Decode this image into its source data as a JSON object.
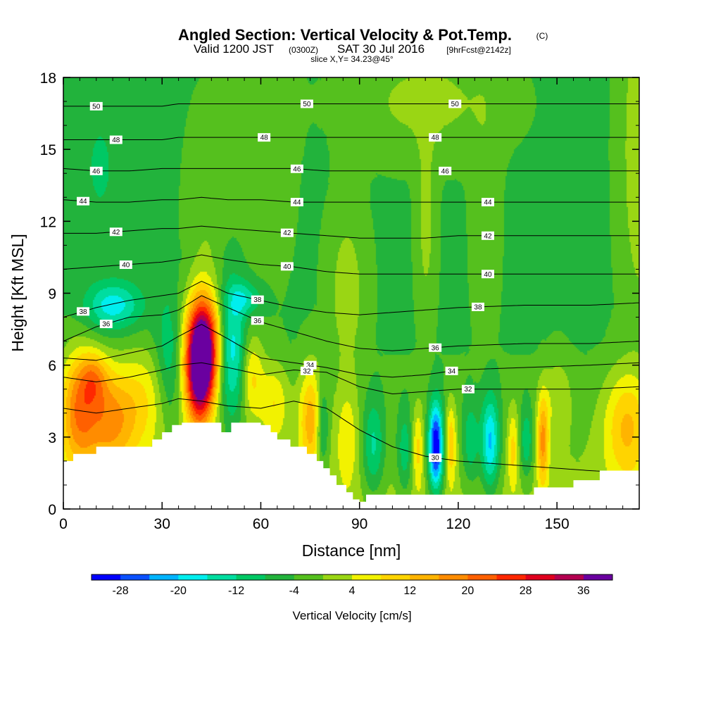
{
  "title": {
    "main": "Angled Section: Vertical Velocity & Pot.Temp.",
    "main_suffix": "(C)",
    "valid_prefix": "Valid 1200 JST",
    "valid_utc": "(0300Z)",
    "valid_date": "SAT 30 Jul 2016",
    "forecast": "[9hrFcst@2142z]",
    "slice": "slice X,Y= 34.23@45°"
  },
  "chart_data": {
    "type": "heatmap",
    "xlabel": "Distance [nm]",
    "ylabel": "Height [Kft MSL]",
    "xlim": [
      0,
      175
    ],
    "ylim": [
      0,
      18
    ],
    "xticks": [
      0,
      30,
      60,
      90,
      120,
      150
    ],
    "yticks": [
      0,
      3,
      6,
      9,
      12,
      15,
      18
    ],
    "colorbar": {
      "title": "Vertical Velocity [cm/s]",
      "labels": [
        -28,
        -20,
        -12,
        -4,
        4,
        12,
        20,
        28,
        36
      ],
      "levels": [
        -32,
        -28,
        -24,
        -20,
        -16,
        -12,
        -8,
        -4,
        0,
        4,
        8,
        12,
        16,
        20,
        24,
        28,
        32,
        36,
        40
      ],
      "colors": [
        "#0000ff",
        "#0a50ff",
        "#00b4ff",
        "#00eeee",
        "#00dda0",
        "#00c864",
        "#22b33c",
        "#55c01e",
        "#9ad614",
        "#f2f200",
        "#ffd400",
        "#ffb400",
        "#ff8c00",
        "#ff6000",
        "#ff2800",
        "#e0001e",
        "#b40050",
        "#6a00a0"
      ]
    },
    "terrain_profile": {
      "x": [
        0,
        3,
        3,
        10,
        10,
        14,
        14,
        27,
        27,
        30,
        30,
        33,
        33,
        36,
        36,
        48,
        48,
        51,
        51,
        60,
        60,
        63,
        63,
        65,
        65,
        69,
        69,
        74,
        74,
        77,
        77,
        79,
        79,
        81,
        81,
        83,
        83,
        86,
        86,
        88,
        88,
        90,
        90,
        92,
        92,
        143,
        143,
        145,
        145,
        155,
        155,
        163,
        163,
        175
      ],
      "y": [
        2.0,
        2.0,
        2.3,
        2.3,
        2.6,
        2.6,
        2.6,
        2.6,
        2.9,
        2.9,
        3.2,
        3.2,
        3.5,
        3.5,
        3.6,
        3.6,
        3.2,
        3.2,
        3.6,
        3.6,
        3.5,
        3.5,
        3.2,
        3.2,
        2.9,
        2.9,
        2.6,
        2.6,
        2.3,
        2.3,
        2.0,
        2.0,
        1.7,
        1.7,
        1.4,
        1.4,
        1.0,
        1.0,
        0.7,
        0.7,
        0.4,
        0.4,
        0.3,
        0.3,
        0.6,
        0.6,
        0.9,
        0.9,
        0.9,
        0.9,
        1.2,
        1.2,
        1.6,
        1.6
      ]
    },
    "velocity_cells": [
      {
        "x": 4,
        "y": 4.2,
        "sx": 4,
        "sy": 1.8,
        "w": 18
      },
      {
        "x": 14,
        "y": 3.8,
        "sx": 6,
        "sy": 1.6,
        "w": 19
      },
      {
        "x": 9,
        "y": 5.5,
        "sx": 3,
        "sy": 0.8,
        "w": 12
      },
      {
        "x": 25,
        "y": 4.8,
        "sx": 5,
        "sy": 1.6,
        "w": 8
      },
      {
        "x": 15,
        "y": 8.5,
        "sx": 6,
        "sy": 0.7,
        "w": -14
      },
      {
        "x": 11,
        "y": 14.3,
        "sx": 2.5,
        "sy": 1.2,
        "w": -6
      },
      {
        "x": 32,
        "y": 6.2,
        "sx": 3,
        "sy": 1.8,
        "w": -8
      },
      {
        "x": 42,
        "y": 6.8,
        "sx": 3.6,
        "sy": 1.5,
        "w": 48
      },
      {
        "x": 41,
        "y": 5.0,
        "sx": 3.0,
        "sy": 1.4,
        "w": 24
      },
      {
        "x": 51,
        "y": 6.5,
        "sx": 3,
        "sy": 2.0,
        "w": -15
      },
      {
        "x": 57,
        "y": 5.6,
        "sx": 2.5,
        "sy": 1.3,
        "w": 12
      },
      {
        "x": 55,
        "y": 8.8,
        "sx": 3.5,
        "sy": 0.5,
        "w": -10
      },
      {
        "x": 64,
        "y": 4.5,
        "sx": 3,
        "sy": 1.2,
        "w": 10
      },
      {
        "x": 75,
        "y": 3.8,
        "sx": 2.6,
        "sy": 1.6,
        "w": 16
      },
      {
        "x": 78.5,
        "y": 3.4,
        "sx": 1.3,
        "sy": 1.2,
        "w": -12
      },
      {
        "x": 86,
        "y": 3.0,
        "sx": 2.5,
        "sy": 1.5,
        "w": 8
      },
      {
        "x": 94,
        "y": 2.6,
        "sx": 2.4,
        "sy": 1.4,
        "w": -12
      },
      {
        "x": 103.5,
        "y": 2.4,
        "sx": 1.7,
        "sy": 1.3,
        "w": -10
      },
      {
        "x": 107.5,
        "y": 2.6,
        "sx": 1.2,
        "sy": 1.2,
        "w": 10
      },
      {
        "x": 113,
        "y": 2.6,
        "sx": 1.6,
        "sy": 1.3,
        "w": -32
      },
      {
        "x": 117.5,
        "y": 2.8,
        "sx": 1.2,
        "sy": 1.2,
        "w": 12
      },
      {
        "x": 123.5,
        "y": 2.8,
        "sx": 1.8,
        "sy": 1.3,
        "w": -10
      },
      {
        "x": 129.5,
        "y": 2.8,
        "sx": 2.0,
        "sy": 1.4,
        "w": -20
      },
      {
        "x": 136.5,
        "y": 2.6,
        "sx": 1.2,
        "sy": 1.2,
        "w": 10
      },
      {
        "x": 145.5,
        "y": 2.9,
        "sx": 1.3,
        "sy": 1.4,
        "w": 18
      },
      {
        "x": 140.5,
        "y": 2.8,
        "sx": 1.5,
        "sy": 1.1,
        "w": -10
      },
      {
        "x": 171,
        "y": 3.5,
        "sx": 5,
        "sy": 1.7,
        "w": 14
      },
      {
        "x": 150,
        "y": 4.8,
        "sx": 3,
        "sy": 1.2,
        "w": 6
      },
      {
        "x": 60,
        "y": 15.5,
        "sx": 6,
        "sy": 4,
        "w": 4
      },
      {
        "x": 110,
        "y": 17.0,
        "sx": 15,
        "sy": 1.5,
        "w": 6
      },
      {
        "x": 175,
        "y": 15.0,
        "sx": 4,
        "sy": 5,
        "w": 8
      },
      {
        "x": 43,
        "y": 12.0,
        "sx": 4,
        "sy": 3,
        "w": 4
      },
      {
        "x": 128,
        "y": 12.5,
        "sx": 3,
        "sy": 4,
        "w": 3
      },
      {
        "x": 110,
        "y": 12.0,
        "sx": 2,
        "sy": 3,
        "w": 6
      },
      {
        "x": 86,
        "y": 9.0,
        "sx": 4,
        "sy": 2.5,
        "w": 7
      }
    ],
    "isentropes": [
      {
        "label": "30",
        "y": [
          4.2,
          4.0,
          4.2,
          4.4,
          4.6,
          4.5,
          4.3,
          4.2,
          4.5,
          4.2,
          3.3,
          2.6,
          2.2,
          2.0,
          1.8,
          1.6,
          1.5
        ]
      },
      {
        "label": "32",
        "y": [
          5.5,
          5.3,
          5.5,
          5.8,
          6.0,
          6.1,
          5.9,
          5.6,
          5.8,
          5.7,
          5.1,
          4.8,
          4.9,
          5.0,
          5.0,
          5.0,
          5.1
        ]
      },
      {
        "label": "34",
        "y": [
          6.3,
          6.2,
          6.5,
          6.8,
          7.2,
          7.7,
          7.1,
          6.3,
          6.1,
          5.9,
          5.6,
          5.5,
          5.6,
          5.8,
          5.9,
          6.0,
          6.1
        ]
      },
      {
        "label": "36",
        "y": [
          7.0,
          7.6,
          8.0,
          8.1,
          8.3,
          8.9,
          8.4,
          7.8,
          7.4,
          7.0,
          6.7,
          6.6,
          6.7,
          6.8,
          6.9,
          6.9,
          7.0
        ]
      },
      {
        "label": "38",
        "y": [
          8.0,
          8.4,
          8.7,
          8.9,
          9.0,
          9.5,
          9.0,
          8.7,
          8.4,
          8.2,
          8.1,
          8.2,
          8.3,
          8.4,
          8.5,
          8.5,
          8.6
        ]
      },
      {
        "label": "40",
        "y": [
          10.0,
          10.1,
          10.2,
          10.3,
          10.4,
          10.6,
          10.4,
          10.2,
          10.1,
          9.9,
          9.8,
          9.8,
          9.8,
          9.8,
          9.8,
          9.8,
          9.8
        ]
      },
      {
        "label": "42",
        "y": [
          11.5,
          11.5,
          11.6,
          11.7,
          11.7,
          11.8,
          11.7,
          11.6,
          11.5,
          11.4,
          11.3,
          11.3,
          11.3,
          11.4,
          11.4,
          11.4,
          11.4
        ]
      },
      {
        "label": "44",
        "y": [
          12.9,
          12.8,
          12.8,
          12.9,
          12.9,
          13.0,
          12.9,
          12.9,
          12.8,
          12.8,
          12.8,
          12.8,
          12.8,
          12.8,
          12.8,
          12.8,
          12.8
        ]
      },
      {
        "label": "46",
        "y": [
          14.2,
          14.1,
          14.1,
          14.2,
          14.2,
          14.2,
          14.2,
          14.2,
          14.2,
          14.1,
          14.1,
          14.1,
          14.1,
          14.1,
          14.1,
          14.1,
          14.1
        ]
      },
      {
        "label": "48",
        "y": [
          15.4,
          15.4,
          15.4,
          15.4,
          15.5,
          15.5,
          15.5,
          15.5,
          15.5,
          15.5,
          15.5,
          15.5,
          15.5,
          15.5,
          15.5,
          15.5,
          15.5
        ]
      },
      {
        "label": "50",
        "y": [
          16.8,
          16.8,
          16.8,
          16.8,
          16.9,
          16.9,
          16.9,
          16.9,
          16.9,
          16.9,
          16.9,
          16.9,
          16.9,
          16.9,
          16.9,
          16.9,
          16.9
        ]
      }
    ],
    "isentrope_x": [
      0,
      10,
      20,
      30,
      35,
      42,
      50,
      60,
      70,
      80,
      90,
      100,
      110,
      120,
      140,
      160,
      175
    ],
    "isentrope_labels": [
      {
        "text": "50",
        "x": [
          10,
          74,
          119
        ]
      },
      {
        "text": "48",
        "x": [
          16,
          61,
          113
        ]
      },
      {
        "text": "46",
        "x": [
          10,
          71,
          116
        ]
      },
      {
        "text": "44",
        "x": [
          6,
          71,
          129
        ]
      },
      {
        "text": "42",
        "x": [
          16,
          68,
          129
        ]
      },
      {
        "text": "40",
        "x": [
          19,
          68,
          129
        ]
      },
      {
        "text": "38",
        "x": [
          6,
          59,
          126
        ]
      },
      {
        "text": "36",
        "x": [
          13,
          59,
          113
        ]
      },
      {
        "text": "34",
        "x": [
          75,
          118
        ]
      },
      {
        "text": "32",
        "x": [
          74,
          123
        ]
      },
      {
        "text": "30",
        "x": [
          113
        ]
      }
    ]
  }
}
